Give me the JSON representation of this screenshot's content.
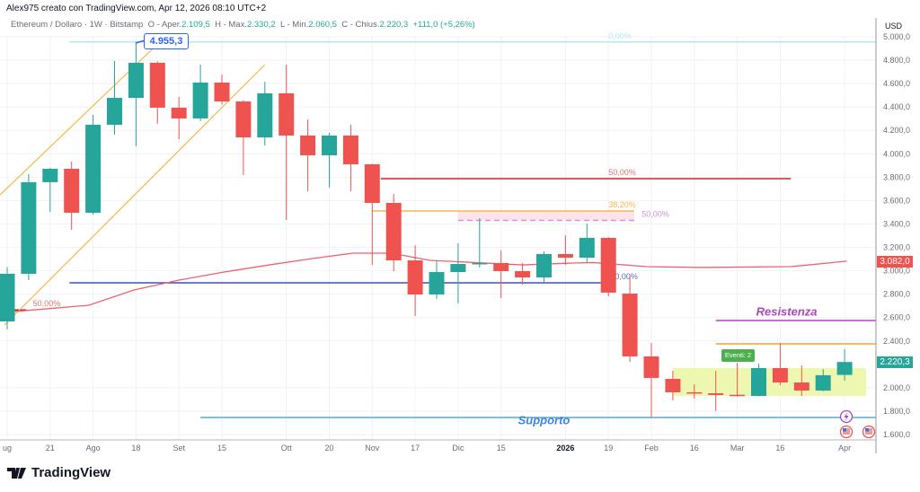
{
  "header": {
    "attribution": "Alex975 creato con TradingView.com, Apr 12, 2026 08:10 UTC+2"
  },
  "legend": {
    "symbol": "Ethereum / Dollaro · 1W · Bitstamp",
    "open_label": "O - Aper.",
    "open_value": "2.109,5",
    "high_label": "H - Max.",
    "high_value": "2.330,2",
    "low_label": "L - Min.",
    "low_value": "2.060,5",
    "close_label": "C - Chius.",
    "close_value": "2.220,3",
    "change": "+111,0 (+5,26%)"
  },
  "tooltip": {
    "value": "4.955,3"
  },
  "events_label": "Eventi: 2",
  "footer": {
    "brand": "TradingView"
  },
  "colors": {
    "up": "#26a69a",
    "down": "#ef5350",
    "ma": "#f0616d",
    "channel": "#f7b84b",
    "fib_blue": "#3f51b5",
    "support": "#5fa8c4",
    "resistance": "#ab47bc",
    "zone": "#eef7b0"
  },
  "chart_data": {
    "type": "candlestick",
    "currency": "USD",
    "y_ticks": [
      "5.000,0",
      "4.800,0",
      "4.600,0",
      "4.400,0",
      "4.200,0",
      "4.000,0",
      "3.800,0",
      "3.600,0",
      "3.400,0",
      "3.200,0",
      "3.000,0",
      "2.800,0",
      "2.600,0",
      "2.400,0",
      "2.000,0",
      "1.800,0",
      "1.600,0"
    ],
    "ylim": [
      1600,
      5000
    ],
    "x_ticks": [
      {
        "label": "ug",
        "bar": 0
      },
      {
        "label": "21",
        "bar": 2
      },
      {
        "label": "Ago",
        "bar": 4
      },
      {
        "label": "18",
        "bar": 6
      },
      {
        "label": "Set",
        "bar": 8
      },
      {
        "label": "15",
        "bar": 10
      },
      {
        "label": "Ott",
        "bar": 13
      },
      {
        "label": "20",
        "bar": 15
      },
      {
        "label": "Nov",
        "bar": 17
      },
      {
        "label": "17",
        "bar": 19
      },
      {
        "label": "Dic",
        "bar": 21
      },
      {
        "label": "15",
        "bar": 23
      },
      {
        "label": "2026",
        "bar": 26,
        "bold": true
      },
      {
        "label": "19",
        "bar": 28
      },
      {
        "label": "Feb",
        "bar": 30
      },
      {
        "label": "16",
        "bar": 32
      },
      {
        "label": "Mar",
        "bar": 34
      },
      {
        "label": "16",
        "bar": 36
      },
      {
        "label": "Apr",
        "bar": 39
      }
    ],
    "candles_ohlc": [
      [
        2567,
        3030,
        2500,
        2974
      ],
      [
        2974,
        3826,
        2920,
        3757
      ],
      [
        3757,
        3880,
        3503,
        3872
      ],
      [
        3872,
        3933,
        3350,
        3496
      ],
      [
        3496,
        4332,
        3480,
        4248
      ],
      [
        4248,
        4793,
        4163,
        4478
      ],
      [
        4478,
        4955,
        4064,
        4778
      ],
      [
        4778,
        4790,
        4256,
        4394
      ],
      [
        4394,
        4486,
        4125,
        4302
      ],
      [
        4302,
        4762,
        4279,
        4609
      ],
      [
        4609,
        4678,
        4420,
        4447
      ],
      [
        4447,
        4460,
        3818,
        4140
      ],
      [
        4140,
        4616,
        4071,
        4517
      ],
      [
        4517,
        4762,
        3434,
        4156
      ],
      [
        4156,
        4294,
        3680,
        3987
      ],
      [
        3987,
        4179,
        3711,
        4156
      ],
      [
        4156,
        4248,
        3680,
        3910
      ],
      [
        3910,
        3915,
        3050,
        3580
      ],
      [
        3580,
        3657,
        2997,
        3089
      ],
      [
        3089,
        3219,
        2613,
        2797
      ],
      [
        2797,
        3089,
        2759,
        2989
      ],
      [
        2989,
        3235,
        2720,
        3058
      ],
      [
        3060,
        3450,
        3028,
        3066
      ],
      [
        3066,
        3173,
        2767,
        2997
      ],
      [
        2997,
        3066,
        2882,
        2943
      ],
      [
        2943,
        3166,
        2897,
        3143
      ],
      [
        3143,
        3304,
        3050,
        3112
      ],
      [
        3112,
        3404,
        3066,
        3281
      ],
      [
        3281,
        3290,
        2782,
        2813
      ],
      [
        2805,
        2958,
        2222,
        2268
      ],
      [
        2268,
        2383,
        1746,
        2084
      ],
      [
        2076,
        2145,
        1892,
        1961
      ],
      [
        1961,
        2030,
        1907,
        1950
      ],
      [
        1953,
        2145,
        1800,
        1938
      ],
      [
        1940,
        2214,
        1925,
        1930
      ],
      [
        1930,
        2206,
        1925,
        2168
      ],
      [
        2168,
        2383,
        2022,
        2045
      ],
      [
        2045,
        2191,
        1930,
        1976
      ],
      [
        1976,
        2160,
        1968,
        2107
      ],
      [
        2109.5,
        2330.2,
        2060.5,
        2220.3
      ]
    ],
    "moving_average": [
      [
        -0.3,
        2628
      ],
      [
        0.3,
        2651
      ],
      [
        3.8,
        2705
      ],
      [
        5.9,
        2836
      ],
      [
        8,
        2920
      ],
      [
        10.1,
        2989
      ],
      [
        12.2,
        3050
      ],
      [
        14.2,
        3104
      ],
      [
        16.1,
        3150
      ],
      [
        17.9,
        3150
      ],
      [
        19.7,
        3089
      ],
      [
        24,
        3050
      ],
      [
        26.4,
        3066
      ],
      [
        27.3,
        3070
      ],
      [
        29.8,
        3035
      ],
      [
        32.3,
        3028
      ],
      [
        36.5,
        3035
      ],
      [
        39.1,
        3082
      ]
    ],
    "ma_last": "3.082,0",
    "last_price": "2.220,3",
    "levels": [
      {
        "price": 4955.3,
        "from": 2.9,
        "to": 41.5,
        "color": "#b2ebf2",
        "label": "0,00%",
        "label_color": "#b2ebf2",
        "label_bar": 28
      },
      {
        "price": 3787,
        "from": 17.4,
        "to": 36.5,
        "color": "#c62828",
        "label": "50,00%",
        "label_color": "#e57373",
        "label_bar": 28
      },
      {
        "price": 3511,
        "from": 17,
        "to": 29.2,
        "color": "#f7b84b",
        "label": "38,20%",
        "label_color": "#f7b84b",
        "label_bar": 28
      },
      {
        "price": 3430,
        "from": 21,
        "to": 29.2,
        "color": "#ce93d8",
        "dashed": true,
        "label": "50,00%",
        "label_color": "#ce93d8",
        "label_bar": 29.3
      },
      {
        "price": 2897,
        "from": 2.9,
        "to": 27.8,
        "color": "#3f51b5",
        "label": "0,00%",
        "label_color": "#5c6bc0",
        "label_bar": 28.3
      },
      {
        "price": 2665,
        "from": 0.3,
        "to": 0.9,
        "color": "#b71c1c",
        "label": "50,00%",
        "label_color": "#e57373",
        "label_bar": 1.2
      },
      {
        "price": 2575,
        "from": 33,
        "to": 41.5,
        "color": "#ab47bc"
      },
      {
        "price": 2375,
        "from": 33,
        "to": 41.5,
        "color": "#f7a034"
      },
      {
        "price": 1746,
        "from": 9,
        "to": 41.5,
        "color": "#5fa8c4"
      }
    ],
    "pink_zone": {
      "from": 21,
      "to": 29.2,
      "top": 3511,
      "bottom": 3430
    },
    "range_zone": {
      "from": 31,
      "to": 40,
      "top": 2168,
      "bottom": 1930
    },
    "channel": [
      {
        "from": [
          -0.33,
          3649
        ],
        "to": [
          7.4,
          5008
        ]
      },
      {
        "from": [
          -0.13,
          2536
        ],
        "to": [
          12,
          4762
        ]
      }
    ],
    "annotations": [
      {
        "text": "Resistenza",
        "bar": 36.3,
        "price": 2615,
        "color": "#ab47bc"
      },
      {
        "text": "Supporto",
        "bar": 25,
        "price": 1690,
        "color": "#3d86e0"
      }
    ]
  }
}
